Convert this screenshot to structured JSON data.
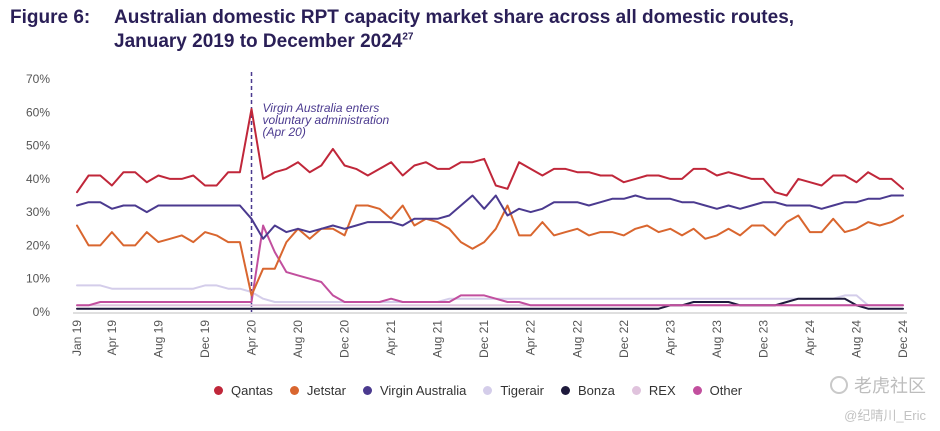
{
  "title": {
    "figure_label": "Figure 6:",
    "line1": "Australian domestic RPT capacity market share across all domestic routes,",
    "line2": "January 2019 to December 2024",
    "footnote": "27"
  },
  "watermark": {
    "text": "老虎社区",
    "credit": "@纪晴川_Eric"
  },
  "chart_data": {
    "type": "line",
    "title": "Australian domestic RPT capacity market share across all domestic routes, January 2019 to December 2024",
    "xlabel": "",
    "ylabel": "",
    "ylim": [
      0,
      70
    ],
    "y_ticks": [
      "0%",
      "10%",
      "20%",
      "30%",
      "40%",
      "50%",
      "60%",
      "70%"
    ],
    "x_tick_labels": [
      "Jan 19",
      "Apr 19",
      "Aug 19",
      "Dec 19",
      "Apr 20",
      "Aug 20",
      "Dec 20",
      "Apr 21",
      "Aug 21",
      "Dec 21",
      "Apr 22",
      "Aug 22",
      "Dec 22",
      "Apr 23",
      "Aug 23",
      "Dec 23",
      "Apr 24",
      "Aug 24",
      "Dec 24"
    ],
    "x_tick_index": [
      0,
      3,
      7,
      11,
      15,
      19,
      23,
      27,
      31,
      35,
      39,
      43,
      47,
      51,
      55,
      59,
      63,
      67,
      71
    ],
    "annotation": {
      "text_lines": [
        "Virgin Australia enters",
        "voluntary administration",
        "(Apr 20)"
      ],
      "x_index": 15
    },
    "grid": false,
    "legend_position": "bottom",
    "series": [
      {
        "name": "Qantas",
        "color": "#c0273a",
        "values": [
          36,
          41,
          41,
          38,
          42,
          42,
          39,
          41,
          40,
          40,
          41,
          38,
          38,
          42,
          42,
          61,
          40,
          42,
          43,
          45,
          42,
          44,
          49,
          44,
          43,
          41,
          43,
          45,
          41,
          44,
          45,
          43,
          43,
          45,
          45,
          46,
          38,
          37,
          45,
          43,
          41,
          43,
          43,
          42,
          42,
          41,
          41,
          39,
          40,
          41,
          41,
          40,
          40,
          43,
          43,
          41,
          42,
          41,
          40,
          40,
          36,
          35,
          40,
          39,
          38,
          41,
          41,
          39,
          42,
          40,
          40,
          37
        ]
      },
      {
        "name": "Jetstar",
        "color": "#d9662f",
        "values": [
          26,
          20,
          20,
          24,
          20,
          20,
          24,
          21,
          22,
          23,
          21,
          24,
          23,
          21,
          21,
          5,
          13,
          13,
          21,
          25,
          22,
          25,
          25,
          23,
          32,
          32,
          31,
          28,
          32,
          26,
          28,
          27,
          25,
          21,
          19,
          21,
          25,
          32,
          23,
          23,
          27,
          23,
          24,
          25,
          23,
          24,
          24,
          23,
          25,
          26,
          24,
          25,
          23,
          25,
          22,
          23,
          25,
          23,
          26,
          26,
          23,
          27,
          29,
          24,
          24,
          28,
          24,
          25,
          27,
          26,
          27,
          29
        ]
      },
      {
        "name": "Virgin Australia",
        "color": "#4b3a8f",
        "values": [
          32,
          33,
          33,
          31,
          32,
          32,
          30,
          32,
          32,
          32,
          32,
          32,
          32,
          32,
          32,
          28,
          22,
          26,
          24,
          25,
          24,
          25,
          26,
          25,
          26,
          27,
          27,
          27,
          26,
          28,
          28,
          28,
          29,
          32,
          35,
          31,
          35,
          29,
          31,
          30,
          31,
          33,
          33,
          33,
          32,
          33,
          34,
          34,
          35,
          34,
          34,
          34,
          33,
          33,
          32,
          31,
          32,
          31,
          32,
          33,
          33,
          32,
          32,
          32,
          31,
          32,
          33,
          33,
          34,
          34,
          35,
          35
        ]
      },
      {
        "name": "Tigerair",
        "color": "#d4cdea",
        "values": [
          8,
          8,
          8,
          7,
          7,
          7,
          7,
          7,
          7,
          7,
          7,
          8,
          8,
          7,
          7,
          6,
          4,
          3,
          3,
          3,
          3,
          3,
          3,
          3,
          3,
          3,
          3,
          3,
          3,
          3,
          3,
          3,
          4,
          4,
          4,
          4,
          4,
          4,
          4,
          4,
          4,
          4,
          4,
          4,
          4,
          4,
          4,
          4,
          4,
          4,
          4,
          4,
          4,
          4,
          4,
          4,
          4,
          4,
          4,
          4,
          4,
          4,
          4,
          4,
          4,
          4,
          5,
          5,
          2,
          2,
          2,
          2
        ]
      },
      {
        "name": "Bonza",
        "color": "#1e1a3c",
        "values": [
          1,
          1,
          1,
          1,
          1,
          1,
          1,
          1,
          1,
          1,
          1,
          1,
          1,
          1,
          1,
          1,
          1,
          1,
          1,
          1,
          1,
          1,
          1,
          1,
          1,
          1,
          1,
          1,
          1,
          1,
          1,
          1,
          1,
          1,
          1,
          1,
          1,
          1,
          1,
          1,
          1,
          1,
          1,
          1,
          1,
          1,
          1,
          1,
          1,
          1,
          1,
          2,
          2,
          3,
          3,
          3,
          3,
          2,
          2,
          2,
          2,
          3,
          4,
          4,
          4,
          4,
          4,
          2,
          1,
          1,
          1,
          1
        ]
      },
      {
        "name": "REX",
        "color": "#e0c3dd",
        "values": [
          2,
          2,
          2,
          2,
          2,
          2,
          2,
          2,
          2,
          2,
          2,
          2,
          2,
          2,
          2,
          2,
          2,
          2,
          2,
          2,
          2,
          2,
          2,
          2,
          2,
          2,
          2,
          2,
          2,
          2,
          2,
          2,
          2,
          2,
          2,
          2,
          2,
          2,
          2,
          2,
          2,
          2,
          2,
          2,
          2,
          2,
          2,
          2,
          2,
          2,
          2,
          2,
          2,
          2,
          2,
          2,
          2,
          2,
          2,
          2,
          2,
          2,
          2,
          2,
          2,
          2,
          2,
          2,
          2,
          2,
          2,
          2
        ]
      },
      {
        "name": "Other",
        "color": "#c24f9e",
        "values": [
          2,
          2,
          3,
          3,
          3,
          3,
          3,
          3,
          3,
          3,
          3,
          3,
          3,
          3,
          3,
          3,
          26,
          18,
          12,
          11,
          10,
          9,
          5,
          3,
          3,
          3,
          3,
          4,
          3,
          3,
          3,
          3,
          3,
          5,
          5,
          5,
          4,
          3,
          3,
          2,
          2,
          2,
          2,
          2,
          2,
          2,
          2,
          2,
          2,
          2,
          2,
          2,
          2,
          2,
          2,
          2,
          2,
          2,
          2,
          2,
          2,
          2,
          2,
          2,
          2,
          2,
          2,
          2,
          2,
          2,
          2,
          2
        ]
      }
    ]
  }
}
